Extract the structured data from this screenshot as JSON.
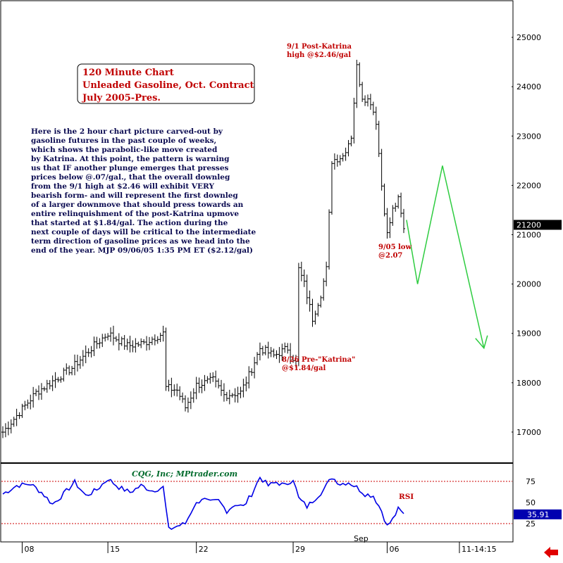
{
  "chart_data": [
    {
      "type": "bar",
      "subtype": "ohlc",
      "title_box": {
        "lines": [
          "120 Minute Chart",
          "Unleaded Gasoline, Oct. Contract",
          "July 2005-Pres."
        ]
      },
      "commentary": [
        "Here is the 2 hour chart picture carved-out by",
        "gasoline futures in the past couple of weeks,",
        "which shows the parabolic-like move created",
        "by Katrina. At this point, the pattern is warning",
        "us that IF another plunge emerges that presses",
        "prices below @.07/gal., that the overall downleg",
        "from the 9/1 high at $2.46 will exhibit VERY",
        "bearish form- and will represent the first downleg",
        "of a larger downmove that should press towards an",
        "entire relinquishment of the post-Katrina upmove",
        "that started at $1.84/gal. The action during the",
        "next couple of days will be critical to the intermediate",
        "term direction of gasoline prices as we head into the",
        "end of the year. MJP  09/06/05  1:35 PM ET ($2.12/gal)"
      ],
      "y_ticks": [
        "25000",
        "24000",
        "23000",
        "22000",
        "21000",
        "20000",
        "19000",
        "18000",
        "17000"
      ],
      "ylim": [
        16400,
        25700
      ],
      "last_price": "21200",
      "annotations": [
        {
          "lines": [
            "9/1 Post-Katrina",
            "high @$2.46/gal"
          ]
        },
        {
          "lines": [
            "9/05 low",
            "@2.07"
          ]
        },
        {
          "lines": [
            "8/26 Pre-\"Katrina\"",
            "@$1.84/gal"
          ]
        }
      ],
      "projection": [
        {
          "bar": 146,
          "price": 21300
        },
        {
          "bar": 150,
          "price": 20000
        },
        {
          "bar": 159,
          "price": 22400
        },
        {
          "bar": 174,
          "price": 18700
        }
      ],
      "projection_arrow": "green",
      "key_points": [
        {
          "bar": 0,
          "price": 17000
        },
        {
          "bar": 12,
          "price": 17800
        },
        {
          "bar": 25,
          "price": 18300
        },
        {
          "bar": 32,
          "price": 18700
        },
        {
          "bar": 38,
          "price": 19000
        },
        {
          "bar": 45,
          "price": 18750
        },
        {
          "bar": 51,
          "price": 18800
        },
        {
          "bar": 56,
          "price": 18950
        },
        {
          "bar": 58,
          "price": 19000
        },
        {
          "bar": 59,
          "price": 17900
        },
        {
          "bar": 63,
          "price": 17850
        },
        {
          "bar": 66,
          "price": 17500
        },
        {
          "bar": 70,
          "price": 17950
        },
        {
          "bar": 76,
          "price": 18050
        },
        {
          "bar": 80,
          "price": 17750
        },
        {
          "bar": 86,
          "price": 17800
        },
        {
          "bar": 89,
          "price": 18150
        },
        {
          "bar": 93,
          "price": 18700
        },
        {
          "bar": 98,
          "price": 18550
        },
        {
          "bar": 103,
          "price": 18700
        },
        {
          "bar": 106,
          "price": 18400
        },
        {
          "bar": 107,
          "price": 20300
        },
        {
          "bar": 109,
          "price": 20000
        },
        {
          "bar": 112,
          "price": 19300
        },
        {
          "bar": 115,
          "price": 19800
        },
        {
          "bar": 117,
          "price": 20300
        },
        {
          "bar": 119,
          "price": 22500
        },
        {
          "bar": 123,
          "price": 22600
        },
        {
          "bar": 126,
          "price": 23000
        },
        {
          "bar": 128,
          "price": 24400
        },
        {
          "bar": 130,
          "price": 23800
        },
        {
          "bar": 133,
          "price": 23700
        },
        {
          "bar": 135,
          "price": 23300
        },
        {
          "bar": 137,
          "price": 22000
        },
        {
          "bar": 139,
          "price": 21000
        },
        {
          "bar": 141,
          "price": 21500
        },
        {
          "bar": 143,
          "price": 21700
        },
        {
          "bar": 145,
          "price": 21100
        }
      ],
      "total_bars": 146
    },
    {
      "type": "line",
      "name": "RSI",
      "label": "RSI",
      "credit": "CQG, Inc; MPtrader.com",
      "y_ticks": [
        "75",
        "50",
        "25"
      ],
      "ylim": [
        5,
        95
      ],
      "reference_lines": [
        75,
        25
      ],
      "last_value": "35.91",
      "key_points": [
        {
          "bar": 0,
          "value": 60
        },
        {
          "bar": 5,
          "value": 70
        },
        {
          "bar": 10,
          "value": 72
        },
        {
          "bar": 14,
          "value": 62
        },
        {
          "bar": 18,
          "value": 48
        },
        {
          "bar": 22,
          "value": 60
        },
        {
          "bar": 26,
          "value": 74
        },
        {
          "bar": 30,
          "value": 58
        },
        {
          "bar": 34,
          "value": 65
        },
        {
          "bar": 38,
          "value": 78
        },
        {
          "bar": 42,
          "value": 68
        },
        {
          "bar": 46,
          "value": 62
        },
        {
          "bar": 50,
          "value": 70
        },
        {
          "bar": 54,
          "value": 64
        },
        {
          "bar": 58,
          "value": 68
        },
        {
          "bar": 60,
          "value": 18
        },
        {
          "bar": 63,
          "value": 22
        },
        {
          "bar": 66,
          "value": 25
        },
        {
          "bar": 69,
          "value": 45
        },
        {
          "bar": 72,
          "value": 55
        },
        {
          "bar": 75,
          "value": 50
        },
        {
          "bar": 78,
          "value": 52
        },
        {
          "bar": 81,
          "value": 40
        },
        {
          "bar": 84,
          "value": 48
        },
        {
          "bar": 87,
          "value": 45
        },
        {
          "bar": 90,
          "value": 60
        },
        {
          "bar": 93,
          "value": 80
        },
        {
          "bar": 96,
          "value": 70
        },
        {
          "bar": 99,
          "value": 74
        },
        {
          "bar": 102,
          "value": 70
        },
        {
          "bar": 105,
          "value": 78
        },
        {
          "bar": 107,
          "value": 55
        },
        {
          "bar": 110,
          "value": 45
        },
        {
          "bar": 113,
          "value": 55
        },
        {
          "bar": 116,
          "value": 65
        },
        {
          "bar": 119,
          "value": 80
        },
        {
          "bar": 122,
          "value": 72
        },
        {
          "bar": 125,
          "value": 74
        },
        {
          "bar": 128,
          "value": 68
        },
        {
          "bar": 131,
          "value": 60
        },
        {
          "bar": 134,
          "value": 58
        },
        {
          "bar": 137,
          "value": 40
        },
        {
          "bar": 139,
          "value": 22
        },
        {
          "bar": 141,
          "value": 30
        },
        {
          "bar": 143,
          "value": 42
        },
        {
          "bar": 145,
          "value": 36
        }
      ]
    }
  ],
  "x_axis": {
    "ticks": [
      {
        "label": "08",
        "bar": 7
      },
      {
        "label": "15",
        "bar": 38
      },
      {
        "label": "22",
        "bar": 70
      },
      {
        "label": "29",
        "bar": 105
      },
      {
        "label": "06",
        "bar": 139
      }
    ],
    "month_label": "Sep",
    "time_readout": "11-14:15"
  },
  "colors": {
    "price_bars": "#000000",
    "rsi_line": "#0000e6",
    "ref_lines": "#cc0000",
    "projection": "#2ecc40",
    "annotation": "#c00000",
    "credit": "#006b2c",
    "arrow": "#e00000"
  }
}
